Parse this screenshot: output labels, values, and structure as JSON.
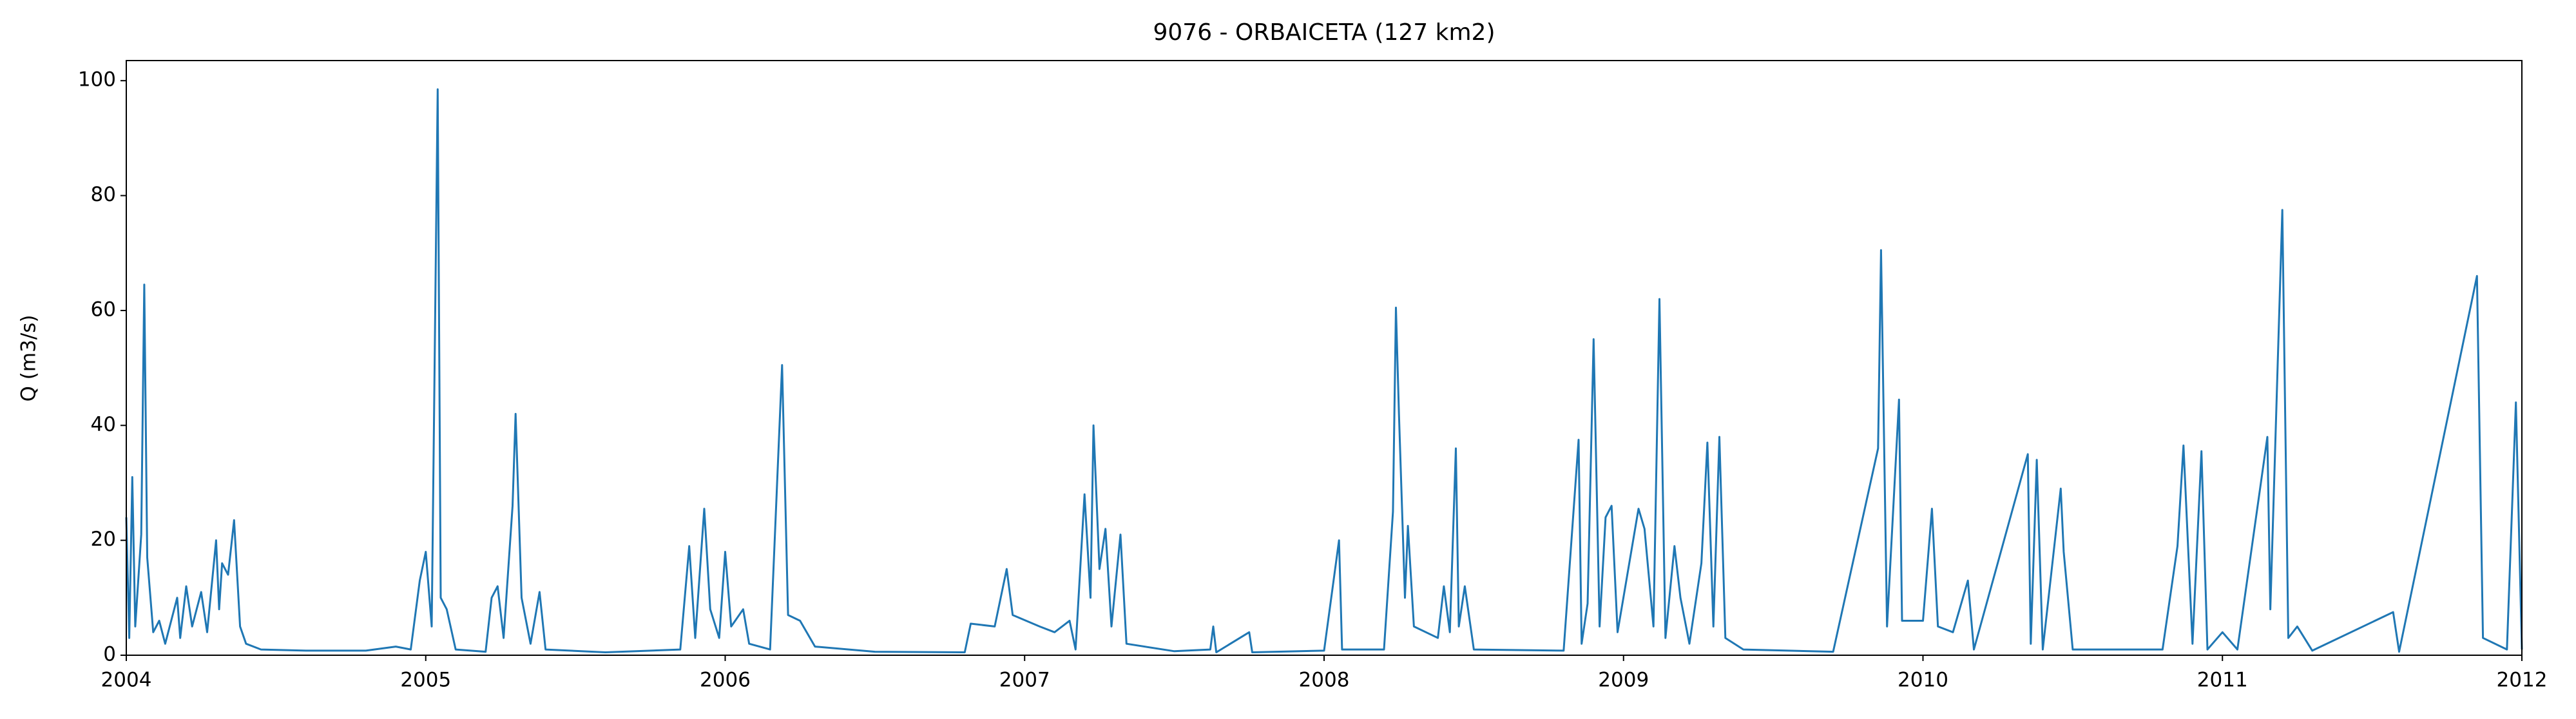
{
  "chart_data": {
    "type": "line",
    "title": "9076 - ORBAICETA (127 km2)",
    "y_label": "Q (m3/s)",
    "x": [
      2004.0,
      2004.01,
      2004.02,
      2004.03,
      2004.05,
      2004.06,
      2004.07,
      2004.09,
      2004.11,
      2004.13,
      2004.17,
      2004.18,
      2004.2,
      2004.22,
      2004.25,
      2004.27,
      2004.3,
      2004.31,
      2004.32,
      2004.34,
      2004.36,
      2004.38,
      2004.4,
      2004.45,
      2004.6,
      2004.8,
      2004.9,
      2004.95,
      2004.98,
      2005.0,
      2005.02,
      2005.04,
      2005.05,
      2005.07,
      2005.1,
      2005.2,
      2005.22,
      2005.24,
      2005.26,
      2005.29,
      2005.3,
      2005.32,
      2005.35,
      2005.38,
      2005.4,
      2005.6,
      2005.85,
      2005.88,
      2005.9,
      2005.93,
      2005.95,
      2005.98,
      2006.0,
      2006.02,
      2006.06,
      2006.08,
      2006.15,
      2006.19,
      2006.21,
      2006.25,
      2006.3,
      2006.5,
      2006.8,
      2006.82,
      2006.9,
      2006.94,
      2006.96,
      2007.05,
      2007.1,
      2007.15,
      2007.17,
      2007.2,
      2007.22,
      2007.23,
      2007.25,
      2007.27,
      2007.29,
      2007.32,
      2007.34,
      2007.5,
      2007.62,
      2007.63,
      2007.64,
      2007.75,
      2007.76,
      2008.0,
      2008.05,
      2008.06,
      2008.2,
      2008.23,
      2008.24,
      2008.25,
      2008.27,
      2008.28,
      2008.3,
      2008.38,
      2008.4,
      2008.42,
      2008.44,
      2008.45,
      2008.47,
      2008.5,
      2008.8,
      2008.85,
      2008.86,
      2008.88,
      2008.9,
      2008.92,
      2008.94,
      2008.96,
      2008.98,
      2009.05,
      2009.07,
      2009.1,
      2009.12,
      2009.14,
      2009.17,
      2009.19,
      2009.22,
      2009.26,
      2009.28,
      2009.3,
      2009.32,
      2009.34,
      2009.4,
      2009.7,
      2009.85,
      2009.86,
      2009.88,
      2009.92,
      2009.93,
      2010.0,
      2010.03,
      2010.05,
      2010.1,
      2010.15,
      2010.17,
      2010.35,
      2010.36,
      2010.38,
      2010.4,
      2010.46,
      2010.47,
      2010.5,
      2010.8,
      2010.85,
      2010.87,
      2010.9,
      2010.93,
      2010.95,
      2011.0,
      2011.05,
      2011.15,
      2011.16,
      2011.2,
      2011.22,
      2011.25,
      2011.3,
      2011.57,
      2011.59,
      2011.85,
      2011.87,
      2011.95,
      2011.98,
      2012.0
    ],
    "series": [
      {
        "name": "Q",
        "color": "#1f77b4",
        "values": [
          24,
          3,
          31,
          5,
          21,
          64.5,
          17,
          4,
          6,
          2,
          10,
          3,
          12,
          5,
          11,
          4,
          20,
          8,
          16,
          14,
          23.5,
          5,
          2,
          1,
          0.8,
          0.8,
          1.5,
          1,
          13,
          18,
          5,
          98.5,
          10,
          8,
          1,
          0.6,
          10,
          12,
          3,
          26,
          42,
          10,
          2,
          11,
          1,
          0.5,
          1,
          19,
          3,
          25.5,
          8,
          3,
          18,
          5,
          8,
          2,
          1,
          50.5,
          7,
          6,
          1.5,
          0.6,
          0.5,
          5.5,
          5,
          15,
          7,
          5,
          4,
          6,
          1,
          28,
          10,
          40,
          15,
          22,
          5,
          21,
          2,
          0.7,
          1,
          5,
          0.5,
          4,
          0.5,
          0.8,
          20,
          1,
          1,
          25,
          60.5,
          42,
          10,
          22.5,
          5,
          3,
          12,
          4,
          36,
          5,
          12,
          1,
          0.8,
          37.5,
          2,
          9,
          55,
          5,
          24,
          26,
          4,
          25.5,
          22,
          5,
          62,
          3,
          19,
          10,
          2,
          16,
          37,
          5,
          38,
          3,
          1,
          0.6,
          36,
          70.5,
          5,
          44.5,
          6,
          6,
          25.5,
          5,
          4,
          13,
          1,
          35,
          2,
          34,
          1,
          29,
          18,
          1,
          1,
          19,
          36.5,
          2,
          35.5,
          1,
          4,
          1,
          38,
          8,
          77.5,
          3,
          5,
          0.8,
          7.5,
          0.6,
          66,
          3,
          1,
          44,
          1
        ]
      }
    ],
    "xlim": [
      2004,
      2012
    ],
    "xticks": [
      2004,
      2005,
      2006,
      2007,
      2008,
      2009,
      2010,
      2011,
      2012
    ],
    "ylim": [
      0,
      103.5
    ],
    "yticks": [
      0,
      20,
      40,
      60,
      80,
      100
    ]
  }
}
